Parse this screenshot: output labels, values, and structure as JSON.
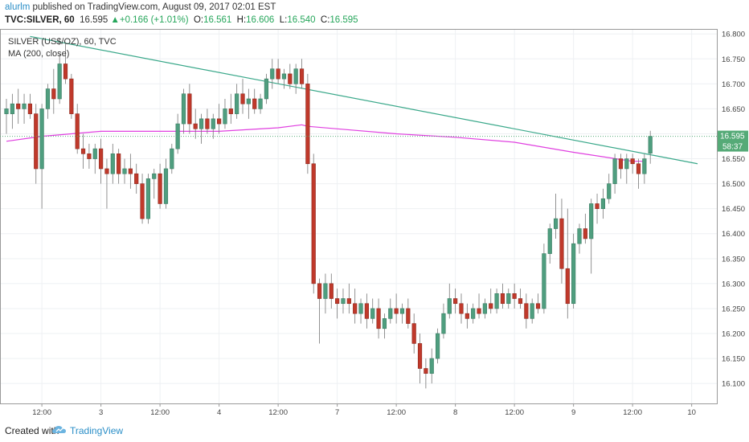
{
  "header": {
    "author": "alurlm",
    "published_text": " published on TradingView.com, August 09, 2017 02:01 EST",
    "symbol_line": "TVC:SILVER, 60",
    "last": "16.595",
    "change": "+0.166 (+1.01%)",
    "o_label": "O:",
    "o_value": "16.561",
    "h_label": "H:",
    "h_value": "16.606",
    "l_label": "L:",
    "l_value": "16.540",
    "c_label": "C:",
    "c_value": "16.595"
  },
  "legend": {
    "symbol": "SILVER (US$/OZ), 60, TVC",
    "indicator": "MA (200, close)"
  },
  "price_tags": {
    "last_price": "16.595",
    "countdown": "58:37"
  },
  "footer": {
    "created_with": "Created with",
    "brand": "TradingView"
  },
  "colors": {
    "up": "#4f9e7f",
    "down": "#c0392b",
    "ma": "#e040e0",
    "trendline": "#3aa88a",
    "last_price_tag": "#55aa77"
  },
  "chart_data": {
    "type": "candlestick",
    "title": "SILVER (US$/OZ), 60, TVC",
    "ylim": [
      16.06,
      16.81
    ],
    "y_ticks": [
      "16.100",
      "16.150",
      "16.200",
      "16.250",
      "16.300",
      "16.350",
      "16.400",
      "16.450",
      "16.500",
      "16.550",
      "16.600",
      "16.650",
      "16.700",
      "16.750",
      "16.800"
    ],
    "x_ticks": [
      "12:00",
      "3",
      "12:00",
      "4",
      "12:00",
      "7",
      "12:00",
      "8",
      "12:00",
      "9",
      "12:00",
      "10"
    ],
    "x_span": 117,
    "x_tick_pos": [
      6,
      16,
      26,
      36,
      46,
      56,
      66,
      76,
      86,
      96,
      106,
      116
    ],
    "candles": [
      {
        "o": 16.64,
        "h": 16.67,
        "l": 16.6,
        "c": 16.65
      },
      {
        "o": 16.64,
        "h": 16.68,
        "l": 16.61,
        "c": 16.66
      },
      {
        "o": 16.66,
        "h": 16.69,
        "l": 16.62,
        "c": 16.65
      },
      {
        "o": 16.65,
        "h": 16.68,
        "l": 16.62,
        "c": 16.66
      },
      {
        "o": 16.66,
        "h": 16.68,
        "l": 16.63,
        "c": 16.64
      },
      {
        "o": 16.64,
        "h": 16.66,
        "l": 16.5,
        "c": 16.53
      },
      {
        "o": 16.53,
        "h": 16.66,
        "l": 16.45,
        "c": 16.65
      },
      {
        "o": 16.65,
        "h": 16.7,
        "l": 16.63,
        "c": 16.69
      },
      {
        "o": 16.69,
        "h": 16.73,
        "l": 16.64,
        "c": 16.67
      },
      {
        "o": 16.67,
        "h": 16.76,
        "l": 16.66,
        "c": 16.74
      },
      {
        "o": 16.74,
        "h": 16.78,
        "l": 16.7,
        "c": 16.71
      },
      {
        "o": 16.71,
        "h": 16.72,
        "l": 16.63,
        "c": 16.64
      },
      {
        "o": 16.64,
        "h": 16.66,
        "l": 16.56,
        "c": 16.57
      },
      {
        "o": 16.57,
        "h": 16.6,
        "l": 16.53,
        "c": 16.56
      },
      {
        "o": 16.56,
        "h": 16.58,
        "l": 16.53,
        "c": 16.55
      },
      {
        "o": 16.55,
        "h": 16.58,
        "l": 16.52,
        "c": 16.57
      },
      {
        "o": 16.57,
        "h": 16.59,
        "l": 16.5,
        "c": 16.53
      },
      {
        "o": 16.53,
        "h": 16.55,
        "l": 16.45,
        "c": 16.52
      },
      {
        "o": 16.52,
        "h": 16.58,
        "l": 16.5,
        "c": 16.56
      },
      {
        "o": 16.56,
        "h": 16.57,
        "l": 16.5,
        "c": 16.52
      },
      {
        "o": 16.52,
        "h": 16.55,
        "l": 16.5,
        "c": 16.53
      },
      {
        "o": 16.53,
        "h": 16.56,
        "l": 16.49,
        "c": 16.52
      },
      {
        "o": 16.52,
        "h": 16.54,
        "l": 16.48,
        "c": 16.5
      },
      {
        "o": 16.5,
        "h": 16.52,
        "l": 16.42,
        "c": 16.43
      },
      {
        "o": 16.43,
        "h": 16.52,
        "l": 16.42,
        "c": 16.51
      },
      {
        "o": 16.51,
        "h": 16.53,
        "l": 16.47,
        "c": 16.52
      },
      {
        "o": 16.52,
        "h": 16.54,
        "l": 16.45,
        "c": 16.46
      },
      {
        "o": 16.46,
        "h": 16.55,
        "l": 16.45,
        "c": 16.53
      },
      {
        "o": 16.53,
        "h": 16.58,
        "l": 16.52,
        "c": 16.57
      },
      {
        "o": 16.57,
        "h": 16.64,
        "l": 16.56,
        "c": 16.62
      },
      {
        "o": 16.62,
        "h": 16.69,
        "l": 16.6,
        "c": 16.68
      },
      {
        "o": 16.68,
        "h": 16.7,
        "l": 16.6,
        "c": 16.62
      },
      {
        "o": 16.62,
        "h": 16.65,
        "l": 16.59,
        "c": 16.61
      },
      {
        "o": 16.61,
        "h": 16.64,
        "l": 16.58,
        "c": 16.63
      },
      {
        "o": 16.63,
        "h": 16.65,
        "l": 16.6,
        "c": 16.61
      },
      {
        "o": 16.61,
        "h": 16.64,
        "l": 16.59,
        "c": 16.63
      },
      {
        "o": 16.63,
        "h": 16.66,
        "l": 16.6,
        "c": 16.62
      },
      {
        "o": 16.62,
        "h": 16.67,
        "l": 16.61,
        "c": 16.65
      },
      {
        "o": 16.65,
        "h": 16.68,
        "l": 16.62,
        "c": 16.64
      },
      {
        "o": 16.64,
        "h": 16.7,
        "l": 16.63,
        "c": 16.68
      },
      {
        "o": 16.68,
        "h": 16.71,
        "l": 16.64,
        "c": 16.66
      },
      {
        "o": 16.66,
        "h": 16.69,
        "l": 16.63,
        "c": 16.67
      },
      {
        "o": 16.67,
        "h": 16.69,
        "l": 16.64,
        "c": 16.65
      },
      {
        "o": 16.65,
        "h": 16.68,
        "l": 16.64,
        "c": 16.67
      },
      {
        "o": 16.67,
        "h": 16.72,
        "l": 16.66,
        "c": 16.71
      },
      {
        "o": 16.71,
        "h": 16.75,
        "l": 16.69,
        "c": 16.73
      },
      {
        "o": 16.73,
        "h": 16.75,
        "l": 16.7,
        "c": 16.71
      },
      {
        "o": 16.71,
        "h": 16.73,
        "l": 16.69,
        "c": 16.72
      },
      {
        "o": 16.72,
        "h": 16.74,
        "l": 16.69,
        "c": 16.7
      },
      {
        "o": 16.7,
        "h": 16.74,
        "l": 16.68,
        "c": 16.73
      },
      {
        "o": 16.73,
        "h": 16.75,
        "l": 16.69,
        "c": 16.7
      },
      {
        "o": 16.7,
        "h": 16.72,
        "l": 16.52,
        "c": 16.54
      },
      {
        "o": 16.54,
        "h": 16.56,
        "l": 16.28,
        "c": 16.3
      },
      {
        "o": 16.3,
        "h": 16.31,
        "l": 16.18,
        "c": 16.27
      },
      {
        "o": 16.27,
        "h": 16.32,
        "l": 16.24,
        "c": 16.3
      },
      {
        "o": 16.3,
        "h": 16.32,
        "l": 16.25,
        "c": 16.27
      },
      {
        "o": 16.27,
        "h": 16.29,
        "l": 16.23,
        "c": 16.26
      },
      {
        "o": 16.26,
        "h": 16.29,
        "l": 16.24,
        "c": 16.27
      },
      {
        "o": 16.27,
        "h": 16.3,
        "l": 16.24,
        "c": 16.26
      },
      {
        "o": 16.26,
        "h": 16.29,
        "l": 16.22,
        "c": 16.24
      },
      {
        "o": 16.24,
        "h": 16.27,
        "l": 16.22,
        "c": 16.26
      },
      {
        "o": 16.26,
        "h": 16.28,
        "l": 16.21,
        "c": 16.23
      },
      {
        "o": 16.23,
        "h": 16.27,
        "l": 16.22,
        "c": 16.25
      },
      {
        "o": 16.25,
        "h": 16.27,
        "l": 16.19,
        "c": 16.21
      },
      {
        "o": 16.21,
        "h": 16.24,
        "l": 16.19,
        "c": 16.23
      },
      {
        "o": 16.23,
        "h": 16.27,
        "l": 16.22,
        "c": 16.25
      },
      {
        "o": 16.25,
        "h": 16.28,
        "l": 16.22,
        "c": 16.24
      },
      {
        "o": 16.24,
        "h": 16.26,
        "l": 16.22,
        "c": 16.25
      },
      {
        "o": 16.25,
        "h": 16.27,
        "l": 16.21,
        "c": 16.22
      },
      {
        "o": 16.22,
        "h": 16.24,
        "l": 16.16,
        "c": 16.18
      },
      {
        "o": 16.18,
        "h": 16.2,
        "l": 16.1,
        "c": 16.13
      },
      {
        "o": 16.13,
        "h": 16.15,
        "l": 16.09,
        "c": 16.12
      },
      {
        "o": 16.12,
        "h": 16.17,
        "l": 16.1,
        "c": 16.15
      },
      {
        "o": 16.15,
        "h": 16.21,
        "l": 16.14,
        "c": 16.2
      },
      {
        "o": 16.2,
        "h": 16.26,
        "l": 16.19,
        "c": 16.24
      },
      {
        "o": 16.24,
        "h": 16.3,
        "l": 16.23,
        "c": 16.27
      },
      {
        "o": 16.27,
        "h": 16.29,
        "l": 16.24,
        "c": 16.26
      },
      {
        "o": 16.26,
        "h": 16.28,
        "l": 16.22,
        "c": 16.24
      },
      {
        "o": 16.24,
        "h": 16.26,
        "l": 16.21,
        "c": 16.23
      },
      {
        "o": 16.23,
        "h": 16.26,
        "l": 16.22,
        "c": 16.25
      },
      {
        "o": 16.25,
        "h": 16.28,
        "l": 16.23,
        "c": 16.24
      },
      {
        "o": 16.24,
        "h": 16.27,
        "l": 16.23,
        "c": 16.26
      },
      {
        "o": 16.26,
        "h": 16.29,
        "l": 16.24,
        "c": 16.25
      },
      {
        "o": 16.25,
        "h": 16.29,
        "l": 16.24,
        "c": 16.28
      },
      {
        "o": 16.28,
        "h": 16.3,
        "l": 16.25,
        "c": 16.26
      },
      {
        "o": 16.26,
        "h": 16.29,
        "l": 16.25,
        "c": 16.28
      },
      {
        "o": 16.28,
        "h": 16.3,
        "l": 16.25,
        "c": 16.27
      },
      {
        "o": 16.27,
        "h": 16.29,
        "l": 16.25,
        "c": 16.26
      },
      {
        "o": 16.26,
        "h": 16.28,
        "l": 16.21,
        "c": 16.23
      },
      {
        "o": 16.23,
        "h": 16.27,
        "l": 16.22,
        "c": 16.26
      },
      {
        "o": 16.26,
        "h": 16.28,
        "l": 16.24,
        "c": 16.25
      },
      {
        "o": 16.25,
        "h": 16.38,
        "l": 16.24,
        "c": 16.36
      },
      {
        "o": 16.36,
        "h": 16.42,
        "l": 16.34,
        "c": 16.41
      },
      {
        "o": 16.41,
        "h": 16.48,
        "l": 16.39,
        "c": 16.43
      },
      {
        "o": 16.43,
        "h": 16.47,
        "l": 16.3,
        "c": 16.33
      },
      {
        "o": 16.33,
        "h": 16.45,
        "l": 16.23,
        "c": 16.26
      },
      {
        "o": 16.26,
        "h": 16.4,
        "l": 16.25,
        "c": 16.38
      },
      {
        "o": 16.38,
        "h": 16.42,
        "l": 16.36,
        "c": 16.41
      },
      {
        "o": 16.41,
        "h": 16.44,
        "l": 16.38,
        "c": 16.39
      },
      {
        "o": 16.39,
        "h": 16.47,
        "l": 16.32,
        "c": 16.46
      },
      {
        "o": 16.46,
        "h": 16.48,
        "l": 16.42,
        "c": 16.45
      },
      {
        "o": 16.45,
        "h": 16.49,
        "l": 16.43,
        "c": 16.47
      },
      {
        "o": 16.47,
        "h": 16.52,
        "l": 16.46,
        "c": 16.5
      },
      {
        "o": 16.5,
        "h": 16.56,
        "l": 16.48,
        "c": 16.55
      },
      {
        "o": 16.55,
        "h": 16.56,
        "l": 16.51,
        "c": 16.53
      },
      {
        "o": 16.53,
        "h": 16.56,
        "l": 16.5,
        "c": 16.55
      },
      {
        "o": 16.55,
        "h": 16.56,
        "l": 16.52,
        "c": 16.54
      },
      {
        "o": 16.54,
        "h": 16.55,
        "l": 16.49,
        "c": 16.52
      },
      {
        "o": 16.52,
        "h": 16.56,
        "l": 16.5,
        "c": 16.55
      },
      {
        "o": 16.561,
        "h": 16.606,
        "l": 16.54,
        "c": 16.595
      }
    ],
    "ma": [
      [
        0,
        16.585
      ],
      [
        6,
        16.595
      ],
      [
        16,
        16.605
      ],
      [
        26,
        16.605
      ],
      [
        36,
        16.605
      ],
      [
        46,
        16.612
      ],
      [
        50,
        16.618
      ],
      [
        51,
        16.615
      ],
      [
        56,
        16.61
      ],
      [
        66,
        16.6
      ],
      [
        76,
        16.593
      ],
      [
        86,
        16.583
      ],
      [
        96,
        16.563
      ],
      [
        106,
        16.545
      ],
      [
        108,
        16.545
      ]
    ],
    "trendline": [
      [
        4,
        16.795
      ],
      [
        117,
        16.54
      ]
    ]
  }
}
